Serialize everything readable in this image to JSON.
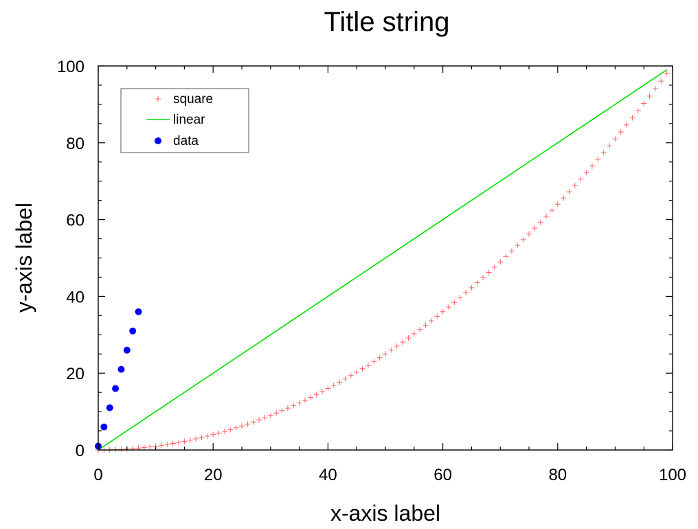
{
  "chart_data": {
    "type": "line",
    "title": "Title string",
    "xlabel": "x-axis label",
    "ylabel": "y-axis label",
    "xlim": [
      0,
      100
    ],
    "ylim": [
      0,
      100
    ],
    "x_ticks": [
      0,
      20,
      40,
      60,
      80,
      100
    ],
    "y_ticks": [
      0,
      20,
      40,
      60,
      80,
      100
    ],
    "x_tick_labels": [
      "0",
      "20",
      "40",
      "60",
      "80",
      "100"
    ],
    "y_tick_labels": [
      "0",
      "20",
      "40",
      "60",
      "80",
      "100"
    ],
    "grid": false,
    "legend_position": "top-left",
    "series": [
      {
        "name": "square",
        "kind": "marker-plus",
        "color": "#ff6060",
        "x": [
          0,
          1,
          2,
          3,
          4,
          5,
          6,
          7,
          8,
          9,
          10,
          11,
          12,
          13,
          14,
          15,
          16,
          17,
          18,
          19,
          20,
          21,
          22,
          23,
          24,
          25,
          26,
          27,
          28,
          29,
          30,
          31,
          32,
          33,
          34,
          35,
          36,
          37,
          38,
          39,
          40,
          41,
          42,
          43,
          44,
          45,
          46,
          47,
          48,
          49,
          50,
          51,
          52,
          53,
          54,
          55,
          56,
          57,
          58,
          59,
          60,
          61,
          62,
          63,
          64,
          65,
          66,
          67,
          68,
          69,
          70,
          71,
          72,
          73,
          74,
          75,
          76,
          77,
          78,
          79,
          80,
          81,
          82,
          83,
          84,
          85,
          86,
          87,
          88,
          89,
          90,
          91,
          92,
          93,
          94,
          95,
          96,
          97,
          98,
          99
        ],
        "y": [
          0,
          0.01,
          0.04,
          0.09,
          0.16,
          0.25,
          0.36,
          0.49,
          0.64,
          0.81,
          1,
          1.21,
          1.44,
          1.69,
          1.96,
          2.25,
          2.56,
          2.89,
          3.24,
          3.61,
          4,
          4.41,
          4.84,
          5.29,
          5.76,
          6.25,
          6.76,
          7.29,
          7.84,
          8.41,
          9,
          9.61,
          10.24,
          10.89,
          11.56,
          12.25,
          12.96,
          13.69,
          14.44,
          15.21,
          16,
          16.81,
          17.64,
          18.49,
          19.36,
          20.25,
          21.16,
          22.09,
          23.04,
          24.01,
          25,
          26.01,
          27.04,
          28.09,
          29.16,
          30.25,
          31.36,
          32.49,
          33.64,
          34.81,
          36,
          37.21,
          38.44,
          39.69,
          40.96,
          42.25,
          43.56,
          44.89,
          46.24,
          47.61,
          49,
          50.41,
          51.84,
          53.29,
          54.76,
          56.25,
          57.76,
          59.29,
          60.84,
          62.41,
          64,
          65.61,
          67.24,
          68.89,
          70.56,
          72.25,
          73.96,
          75.69,
          77.44,
          79.21,
          81,
          82.81,
          84.64,
          86.49,
          88.36,
          90.25,
          92.16,
          94.09,
          96.04,
          98.01
        ]
      },
      {
        "name": "linear",
        "kind": "line",
        "color": "#00e000",
        "x": [
          0,
          99
        ],
        "y": [
          0,
          99
        ]
      },
      {
        "name": "data",
        "kind": "marker-dot",
        "color": "#0000ff",
        "x": [
          0,
          1,
          2,
          3,
          4,
          5,
          6,
          7
        ],
        "y": [
          1,
          6,
          11,
          16,
          21,
          26,
          31,
          36
        ]
      }
    ]
  }
}
